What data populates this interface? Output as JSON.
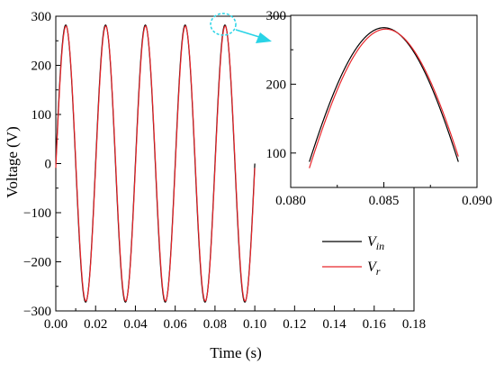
{
  "chart_data": [
    {
      "type": "line",
      "xlabel": "Time (s)",
      "ylabel": "Voltage (V)",
      "xlim": [
        0.0,
        0.18
      ],
      "ylim": [
        -300,
        300
      ],
      "xticks": [
        "0.00",
        "0.02",
        "0.04",
        "0.06",
        "0.08",
        "0.10",
        "0.12",
        "0.14",
        "0.16",
        "0.18"
      ],
      "yticks": [
        "−300",
        "−200",
        "−100",
        "0",
        "100",
        "200",
        "300"
      ],
      "x_data_range": [
        0.0,
        0.1
      ],
      "frequency_hz": 50,
      "series": [
        {
          "name_main": "V",
          "name_sub": "in",
          "color": "#000000",
          "amplitude": 282,
          "phase_shift_s": 0.0
        },
        {
          "name_main": "V",
          "name_sub": "r",
          "color": "#e8262b",
          "amplitude": 280,
          "phase_shift_s": 0.0001
        }
      ],
      "legend_position": "lower-right"
    },
    {
      "type": "line",
      "inset_of": "main",
      "annotation": "magnified view of peak (cyan dashed circle and arrow)",
      "annotation_color": "#29d3e6",
      "xlim": [
        0.08,
        0.09
      ],
      "ylim": [
        50,
        300
      ],
      "xticks": [
        "0.080",
        "0.085",
        "0.090"
      ],
      "yticks": [
        "100",
        "200",
        "300"
      ],
      "x_data_range": [
        0.081,
        0.089
      ],
      "series": [
        {
          "name": "Vin",
          "color": "#000000",
          "amplitude": 282,
          "phase_shift_s": 0.0
        },
        {
          "name": "Vr",
          "color": "#e8262b",
          "amplitude": 280,
          "phase_shift_s": 0.0001
        }
      ]
    }
  ]
}
